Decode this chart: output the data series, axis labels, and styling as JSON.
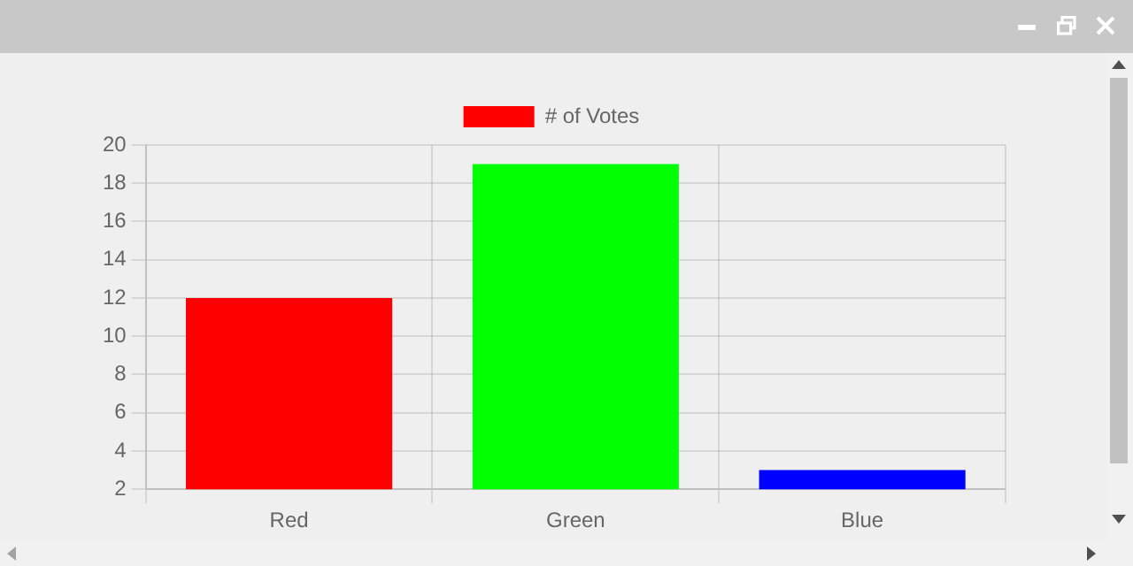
{
  "chart_data": {
    "type": "bar",
    "categories": [
      "Red",
      "Green",
      "Blue"
    ],
    "series": [
      {
        "name": "# of Votes",
        "colors": [
          "#ff0000",
          "#00ff00",
          "#0000ff"
        ],
        "values": [
          12,
          19,
          3
        ]
      }
    ],
    "ylim": [
      2,
      20
    ],
    "yticks": [
      2,
      4,
      6,
      8,
      10,
      12,
      14,
      16,
      18,
      20
    ],
    "grid": true,
    "legend": "top"
  }
}
